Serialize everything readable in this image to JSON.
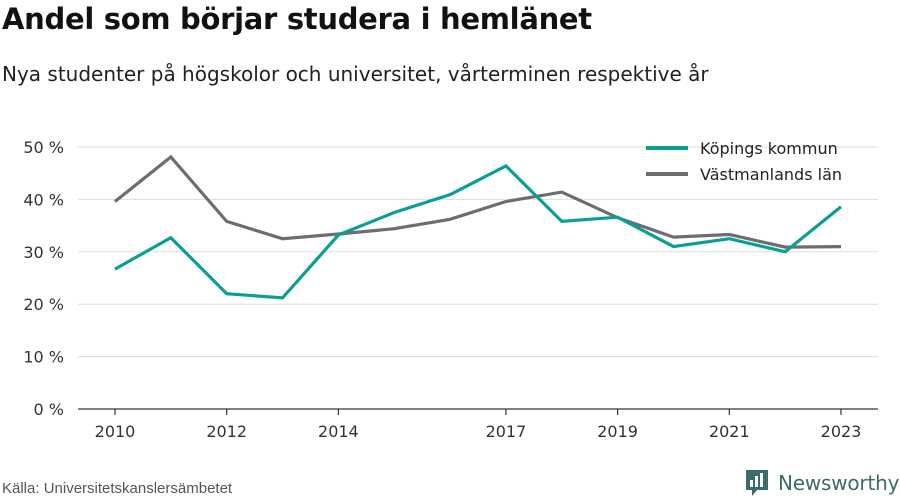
{
  "chart_data": {
    "type": "line",
    "title": "Andel som börjar studera i hemlänet",
    "subtitle": "Nya studenter på högskolor och universitet, vårterminen respektive år",
    "x": [
      2010,
      2011,
      2012,
      2013,
      2014,
      2015,
      2016,
      2017,
      2018,
      2019,
      2020,
      2021,
      2022,
      2023
    ],
    "x_ticks": [
      2010,
      2012,
      2014,
      2017,
      2019,
      2021,
      2023
    ],
    "y_ticks": [
      0,
      10,
      20,
      30,
      40,
      50
    ],
    "y_tick_labels": [
      "0 %",
      "10 %",
      "20 %",
      "30 %",
      "40 %",
      "50 %"
    ],
    "ylim": [
      0,
      50
    ],
    "grid": true,
    "legend_position": "top-right",
    "series": [
      {
        "name": "Köpings kommun",
        "color": "#0a9f94",
        "values": [
          26.7,
          32.7,
          22.0,
          21.2,
          33.2,
          37.5,
          40.9,
          46.4,
          35.8,
          36.6,
          31.0,
          32.5,
          30.0,
          38.6
        ]
      },
      {
        "name": "Västmanlands län",
        "color": "#6e6c72",
        "values": [
          39.6,
          48.1,
          35.8,
          32.5,
          33.4,
          34.4,
          36.2,
          39.6,
          41.4,
          36.5,
          32.8,
          33.3,
          30.9,
          31.0
        ]
      }
    ]
  },
  "source": "Källa: Universitetskanslersämbetet",
  "brand": {
    "name": "Newsworthy",
    "icon": "newsworthy-logo-icon",
    "color": "#3b6b6b"
  }
}
